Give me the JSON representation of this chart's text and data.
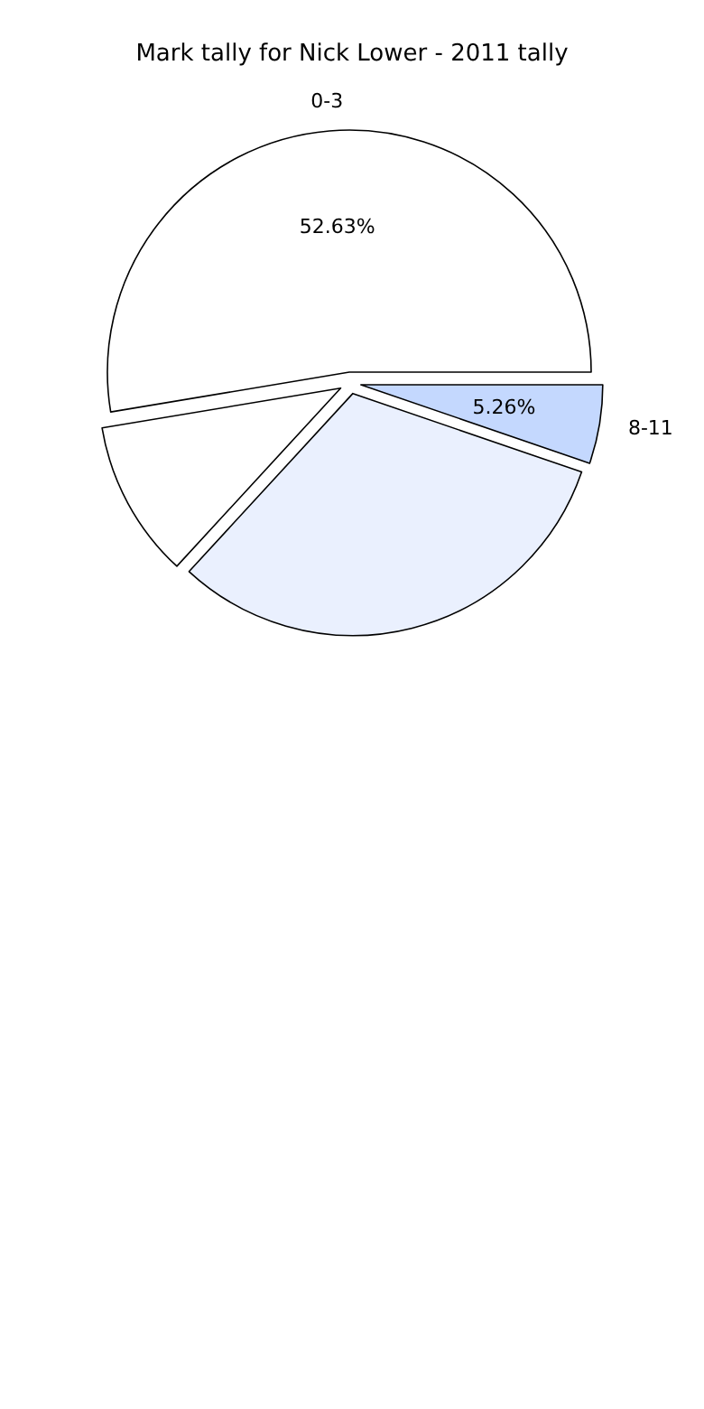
{
  "chart_data": {
    "type": "pie",
    "title": "Mark tally for Nick Lower - 2011 tally",
    "categories": [
      "0-3",
      null,
      null,
      "8-11"
    ],
    "values": [
      52.63,
      10.53,
      31.58,
      5.26
    ],
    "colors": [
      "#ffffff",
      "#ffffff",
      "#eaf0fe",
      "#c4d8fe"
    ],
    "value_labels": [
      "52.63%",
      null,
      null,
      "5.26%"
    ]
  }
}
